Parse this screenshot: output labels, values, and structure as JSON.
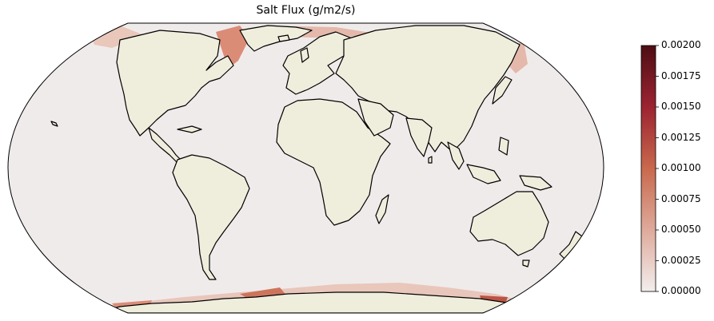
{
  "title": "Salt Flux (g/m2/s)",
  "map": {
    "projection": "Robinson-like global",
    "ocean_color": "#f0ebeb",
    "land_color": "#efeddc",
    "coastline_color": "#000000",
    "colormap": [
      "#f3eeee",
      "#deaa9b",
      "#c9694d",
      "#9c2431",
      "#4e0d14"
    ]
  },
  "colorbar": {
    "ticks": [
      "0.00200",
      "0.00175",
      "0.00150",
      "0.00125",
      "0.00100",
      "0.00075",
      "0.00050",
      "0.00025",
      "0.00000"
    ],
    "min": 0,
    "max": 0.002
  }
}
